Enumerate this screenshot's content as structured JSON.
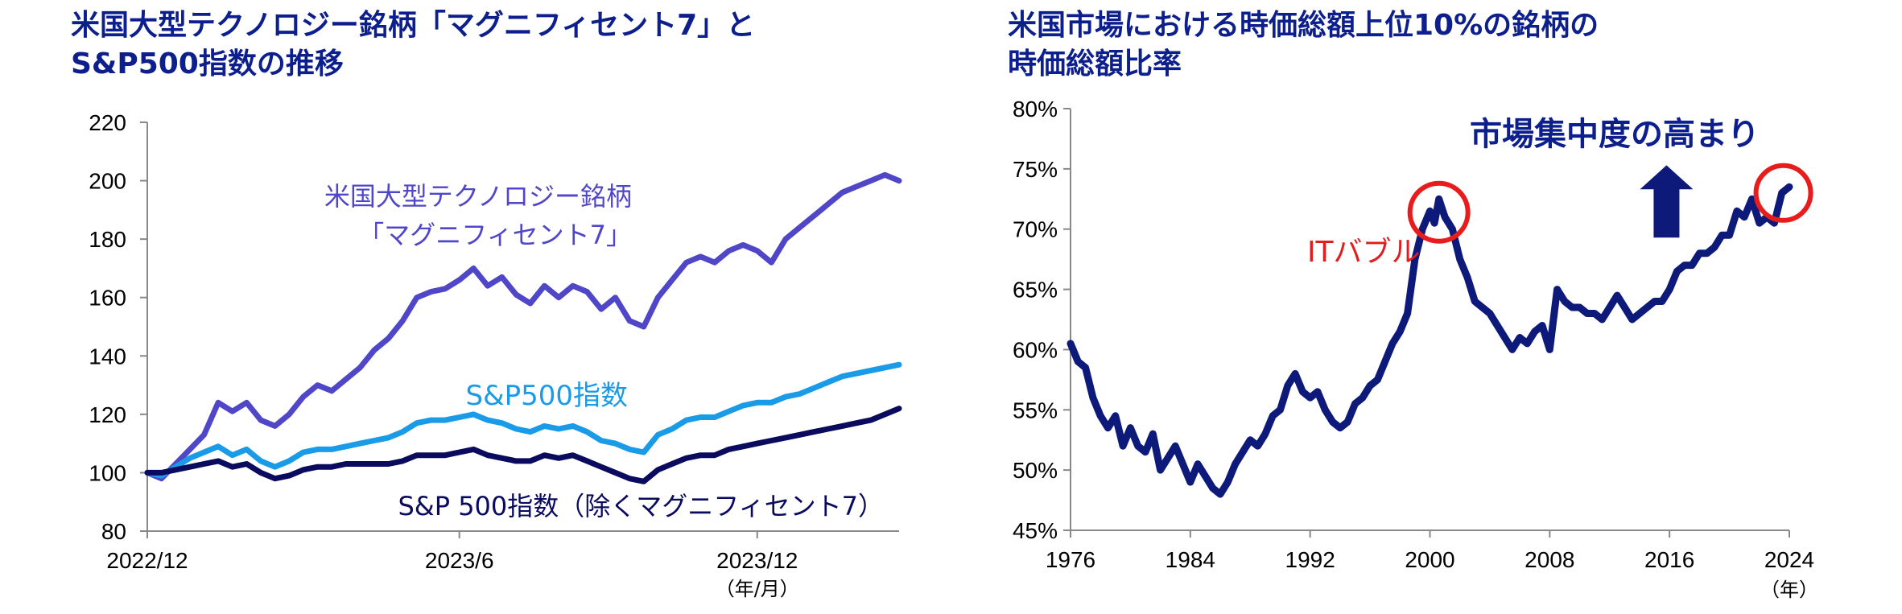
{
  "chart_data": [
    {
      "type": "line",
      "title": [
        "米国大型テクノロジー銘柄「マグニフィセント7」と",
        "S&P500指数の推移"
      ],
      "x_ticks": [
        "2022/12",
        "2023/6",
        "2023/12"
      ],
      "x_unit": "（年/月）",
      "ylim": [
        80,
        220
      ],
      "y_ticks": [
        "80",
        "100",
        "120",
        "140",
        "160",
        "180",
        "200",
        "220"
      ],
      "grid": false,
      "series": [
        {
          "name": [
            "米国大型テクノロジー銘柄",
            "「マグニフィセント7」"
          ],
          "color": "#5046c8",
          "values": [
            100,
            98,
            103,
            108,
            113,
            124,
            121,
            124,
            118,
            116,
            120,
            126,
            130,
            128,
            132,
            136,
            142,
            146,
            152,
            160,
            162,
            163,
            166,
            170,
            164,
            167,
            161,
            158,
            164,
            160,
            164,
            162,
            156,
            160,
            152,
            150,
            160,
            166,
            172,
            174,
            172,
            176,
            178,
            176,
            172,
            180,
            184,
            188,
            192,
            196,
            198,
            200,
            202,
            200
          ]
        },
        {
          "name": "S&P500指数",
          "color": "#1a9be8",
          "values": [
            100,
            99,
            102,
            105,
            107,
            109,
            106,
            108,
            104,
            102,
            104,
            107,
            108,
            108,
            109,
            110,
            111,
            112,
            114,
            117,
            118,
            118,
            119,
            120,
            118,
            117,
            115,
            114,
            116,
            115,
            116,
            114,
            111,
            110,
            108,
            107,
            113,
            115,
            118,
            119,
            119,
            121,
            123,
            124,
            124,
            126,
            127,
            129,
            131,
            133,
            134,
            135,
            136,
            137
          ]
        },
        {
          "name": "S&P 500指数（除くマグニフィセント7）",
          "color": "#0a0a5e",
          "values": [
            100,
            100,
            101,
            102,
            103,
            104,
            102,
            103,
            100,
            98,
            99,
            101,
            102,
            102,
            103,
            103,
            103,
            103,
            104,
            106,
            106,
            106,
            107,
            108,
            106,
            105,
            104,
            104,
            106,
            105,
            106,
            104,
            102,
            100,
            98,
            97,
            101,
            103,
            105,
            106,
            106,
            108,
            109,
            110,
            111,
            112,
            113,
            114,
            115,
            116,
            117,
            118,
            120,
            122
          ]
        }
      ]
    },
    {
      "type": "line",
      "title": [
        "米国市場における時価総額上位10%の銘柄の",
        "時価総額比率"
      ],
      "xlim": [
        1976,
        2024
      ],
      "x_ticks": [
        "1976",
        "1984",
        "1992",
        "2000",
        "2008",
        "2016",
        "2024"
      ],
      "x_unit": "（年）",
      "ylim": [
        45,
        80
      ],
      "y_ticks": [
        "45%",
        "50%",
        "55%",
        "60%",
        "65%",
        "70%",
        "75%",
        "80%"
      ],
      "grid": false,
      "series": [
        {
          "color": "#0d1a7a",
          "x": [
            1976,
            1976.5,
            1977,
            1977.5,
            1978,
            1978.5,
            1979,
            1979.5,
            1980,
            1980.5,
            1981,
            1981.5,
            1982,
            1982.5,
            1983,
            1983.5,
            1984,
            1984.5,
            1985,
            1985.5,
            1986,
            1986.5,
            1987,
            1987.5,
            1988,
            1988.5,
            1989,
            1989.5,
            1990,
            1990.5,
            1991,
            1991.5,
            1992,
            1992.5,
            1993,
            1993.5,
            1994,
            1994.5,
            1995,
            1995.5,
            1996,
            1996.5,
            1997,
            1997.5,
            1998,
            1998.5,
            1999,
            1999.5,
            2000,
            2000.3,
            2000.6,
            2001,
            2001.5,
            2002,
            2002.5,
            2003,
            2003.5,
            2004,
            2004.5,
            2005,
            2005.5,
            2006,
            2006.5,
            2007,
            2007.5,
            2008,
            2008.5,
            2009,
            2009.5,
            2010,
            2010.5,
            2011,
            2011.5,
            2012,
            2012.5,
            2013,
            2013.5,
            2014,
            2014.5,
            2015,
            2015.5,
            2016,
            2016.5,
            2017,
            2017.5,
            2018,
            2018.5,
            2019,
            2019.5,
            2020,
            2020.5,
            2021,
            2021.5,
            2022,
            2022.5,
            2023,
            2023.5,
            2024
          ],
          "values": [
            60.5,
            59,
            58.5,
            56,
            54.5,
            53.5,
            54.5,
            52,
            53.5,
            52,
            51.5,
            53,
            50,
            51,
            52,
            50.5,
            49,
            50.5,
            49.5,
            48.5,
            48,
            49,
            50.5,
            51.5,
            52.5,
            52,
            53,
            54.5,
            55,
            57,
            58,
            56.5,
            56,
            56.5,
            55,
            54,
            53.5,
            54,
            55.5,
            56,
            57,
            57.5,
            59,
            60.5,
            61.5,
            63,
            67.5,
            70,
            71.5,
            70.5,
            72.5,
            71,
            70,
            67.5,
            66,
            64,
            63.5,
            63,
            62,
            61,
            60,
            61,
            60.5,
            61.5,
            62,
            60,
            65,
            64,
            63.5,
            63.5,
            63,
            63,
            62.5,
            63.5,
            64.5,
            63.5,
            62.5,
            63,
            63.5,
            64,
            64,
            65,
            66.5,
            67,
            67,
            68,
            68,
            68.5,
            69.5,
            69.5,
            71.5,
            71,
            72.5,
            70.5,
            71,
            70.5,
            73,
            73.5
          ]
        }
      ],
      "annotations": {
        "it_bubble": "ITバブル",
        "concentration": "市場集中度の高まり"
      }
    }
  ]
}
